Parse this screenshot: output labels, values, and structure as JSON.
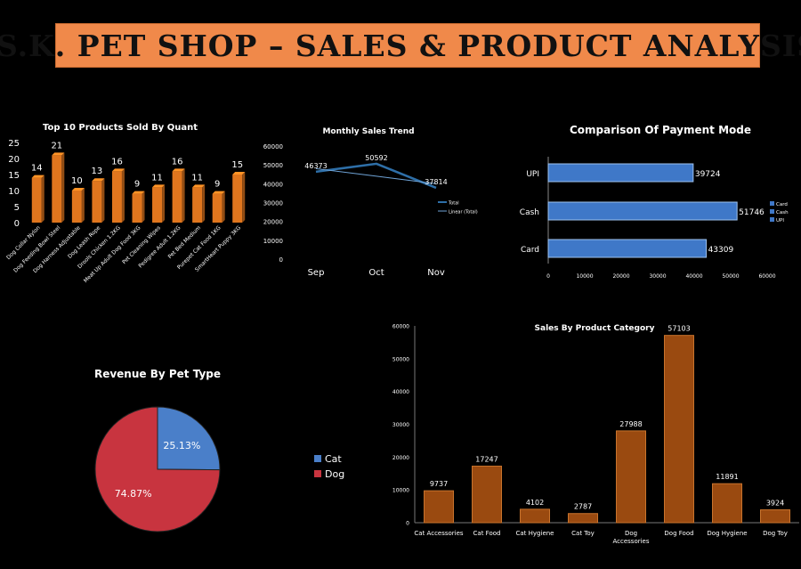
{
  "header": {
    "title": "S.K. PET SHOP – SALES & PRODUCT ANALYSIS"
  },
  "chart_data": [
    {
      "type": "bar",
      "title": "Top 10 Products Sold By Quant",
      "categories": [
        "Dog Collar Nylon",
        "Dog Feeding Bowl Steel",
        "Dog Harness Adjustable",
        "Dog Leash Rope",
        "Drools Chicken 1.2KG",
        "Meat Up Adult Dog Food 3KG",
        "Pet Cleaning Wipes",
        "Pedigree Adult 1.2KG",
        "Pet Bed Medium",
        "Purepet Cat Food 1KG",
        "SmartHeart Puppy 3KG"
      ],
      "values": [
        14,
        21,
        10,
        13,
        16,
        9,
        11,
        16,
        11,
        9,
        15
      ],
      "ylim": [
        0,
        25
      ],
      "yticks": [
        0,
        5,
        10,
        15,
        20,
        25
      ],
      "color": "#e0761e"
    },
    {
      "type": "line",
      "title": "Monthly Sales Trend",
      "categories": [
        "Sep",
        "Oct",
        "Nov"
      ],
      "series": [
        {
          "name": "Total",
          "values": [
            46373,
            50592,
            37814
          ]
        },
        {
          "name": "Linear (Total)",
          "values": [
            48000,
            44000,
            40000
          ]
        }
      ],
      "ylim": [
        0,
        60000
      ],
      "yticks": [
        0,
        10000,
        20000,
        30000,
        40000,
        50000,
        60000
      ],
      "color": "#2e6fa8"
    },
    {
      "type": "bar",
      "orientation": "horizontal",
      "title": "Comparison Of Payment Mode",
      "categories": [
        "UPI",
        "Cash",
        "Card"
      ],
      "values": [
        39724,
        51746,
        43309
      ],
      "xlim": [
        0,
        60000
      ],
      "xticks": [
        0,
        10000,
        20000,
        30000,
        40000,
        50000,
        60000
      ],
      "legend": [
        "Card",
        "Cash",
        "UPI"
      ],
      "color": "#3f78c8"
    },
    {
      "type": "pie",
      "title": "Revenue By Pet Type",
      "slices": [
        {
          "label": "Cat",
          "value": 25.13,
          "display": "25.13%",
          "color": "#4a7fc9"
        },
        {
          "label": "Dog",
          "value": 74.87,
          "display": "74.87%",
          "color": "#c8343f"
        }
      ]
    },
    {
      "type": "bar",
      "title": "Sales By Product Category",
      "categories": [
        "Cat Accessories",
        "Cat Food",
        "Cat Hygiene",
        "Cat Toy",
        "Dog Accessories",
        "Dog Food",
        "Dog Hygiene",
        "Dog Toy"
      ],
      "values": [
        9737,
        17247,
        4102,
        2787,
        27988,
        57103,
        11891,
        3924
      ],
      "ylim": [
        0,
        60000
      ],
      "yticks": [
        0,
        10000,
        20000,
        30000,
        40000,
        50000,
        60000
      ],
      "color": "#9a4a10"
    }
  ]
}
